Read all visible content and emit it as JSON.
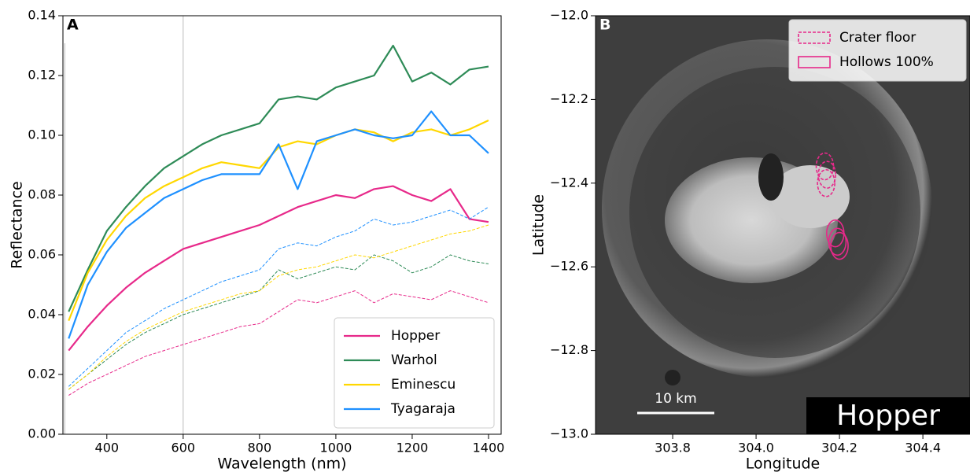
{
  "chart_data": [
    {
      "type": "line",
      "annotation": "A",
      "xlabel": "Wavelength (nm)",
      "ylabel": "Reflectance",
      "x": [
        300,
        350,
        400,
        450,
        500,
        550,
        600,
        650,
        700,
        750,
        800,
        850,
        900,
        950,
        1000,
        1050,
        1100,
        1150,
        1200,
        1250,
        1300,
        1350,
        1400
      ],
      "xlim": [
        285,
        1433
      ],
      "ylim": [
        0,
        0.14
      ],
      "xticks": [
        400,
        600,
        800,
        1000,
        1200,
        1400
      ],
      "yticks": [
        {
          "value": 0,
          "label": "0.00"
        },
        0.02,
        0.04,
        0.06,
        0.08,
        {
          "value": 0.1,
          "label": "0.10"
        },
        0.12,
        0.14
      ],
      "reference_lines_x": [
        290,
        600
      ],
      "legend": "lower right",
      "series": [
        {
          "name": "Hopper",
          "color": "#e7298a",
          "linestyle": "solid",
          "values": [
            0.028,
            0.036,
            0.043,
            0.049,
            0.054,
            0.058,
            0.062,
            0.064,
            0.066,
            0.068,
            0.07,
            0.073,
            0.076,
            0.078,
            0.08,
            0.079,
            0.082,
            0.083,
            0.08,
            0.078,
            0.082,
            0.072,
            0.071
          ]
        },
        {
          "name": "Warhol",
          "color": "#2e8b57",
          "linestyle": "solid",
          "values": [
            0.041,
            0.055,
            0.068,
            0.076,
            0.083,
            0.089,
            0.093,
            0.097,
            0.1,
            0.102,
            0.104,
            0.112,
            0.113,
            0.112,
            0.116,
            0.118,
            0.12,
            0.13,
            0.118,
            0.121,
            0.117,
            0.122,
            0.123
          ]
        },
        {
          "name": "Eminescu",
          "color": "#ffd700",
          "linestyle": "solid",
          "values": [
            0.038,
            0.054,
            0.065,
            0.073,
            0.079,
            0.083,
            0.086,
            0.089,
            0.091,
            0.09,
            0.089,
            0.096,
            0.098,
            0.097,
            0.1,
            0.102,
            0.101,
            0.098,
            0.101,
            0.102,
            0.1,
            0.102,
            0.105
          ]
        },
        {
          "name": "Tyagaraja",
          "color": "#1e90ff",
          "linestyle": "solid",
          "values": [
            0.032,
            0.05,
            0.061,
            0.069,
            0.074,
            0.079,
            0.082,
            0.085,
            0.087,
            0.087,
            0.087,
            0.097,
            0.082,
            0.098,
            0.1,
            0.102,
            0.1,
            0.099,
            0.1,
            0.108,
            0.1,
            0.1,
            0.094
          ]
        },
        {
          "color": "#e7298a",
          "linestyle": "dashed",
          "values": [
            0.013,
            0.017,
            0.02,
            0.023,
            0.026,
            0.028,
            0.03,
            0.032,
            0.034,
            0.036,
            0.037,
            0.041,
            0.045,
            0.044,
            0.046,
            0.048,
            0.044,
            0.047,
            0.046,
            0.045,
            0.048,
            0.046,
            0.044
          ]
        },
        {
          "color": "#2e8b57",
          "linestyle": "dashed",
          "values": [
            0.015,
            0.02,
            0.025,
            0.03,
            0.034,
            0.037,
            0.04,
            0.042,
            0.044,
            0.046,
            0.048,
            0.055,
            0.052,
            0.054,
            0.056,
            0.055,
            0.06,
            0.058,
            0.054,
            0.056,
            0.06,
            0.058,
            0.057
          ]
        },
        {
          "color": "#ffd700",
          "linestyle": "dashed",
          "values": [
            0.015,
            0.02,
            0.026,
            0.031,
            0.035,
            0.038,
            0.041,
            0.043,
            0.045,
            0.047,
            0.048,
            0.053,
            0.055,
            0.056,
            0.058,
            0.06,
            0.059,
            0.061,
            0.063,
            0.065,
            0.067,
            0.068,
            0.07
          ]
        },
        {
          "color": "#1e90ff",
          "linestyle": "dashed",
          "values": [
            0.016,
            0.022,
            0.028,
            0.034,
            0.038,
            0.042,
            0.045,
            0.048,
            0.051,
            0.053,
            0.055,
            0.062,
            0.064,
            0.063,
            0.066,
            0.068,
            0.072,
            0.07,
            0.071,
            0.073,
            0.075,
            0.072,
            0.076
          ]
        }
      ]
    },
    {
      "type": "image",
      "annotation": "B",
      "label": "Hopper",
      "xlabel": "Longitude",
      "ylabel": "Latitude",
      "xlim": [
        303.615,
        304.513
      ],
      "ylim": [
        -13,
        -12
      ],
      "xticks": [
        303.8,
        {
          "value": 304,
          "label": "304.0"
        },
        304.2,
        304.4
      ],
      "yticks": [
        {
          "value": -12,
          "label": "−12.0"
        },
        {
          "value": -12.2,
          "label": "−12.2"
        },
        {
          "value": -12.4,
          "label": "−12.4"
        },
        {
          "value": -12.6,
          "label": "−12.6"
        },
        {
          "value": -12.8,
          "label": "−12.8"
        },
        {
          "value": -13,
          "label": "−13.0"
        }
      ],
      "legend": "upper right",
      "scale_bar": "10 km",
      "regions": [
        {
          "name": "Crater floor",
          "color": "#e7298a",
          "linestyle": "dashed",
          "x": [
            304.165,
            304.17,
            304.168
          ],
          "y": [
            -12.36,
            -12.38,
            -12.4
          ]
        },
        {
          "name": "Hollows 100%",
          "color": "#e7298a",
          "linestyle": "solid",
          "x": [
            304.19,
            304.195,
            304.2
          ],
          "y": [
            -12.52,
            -12.54,
            -12.55
          ]
        }
      ]
    }
  ]
}
